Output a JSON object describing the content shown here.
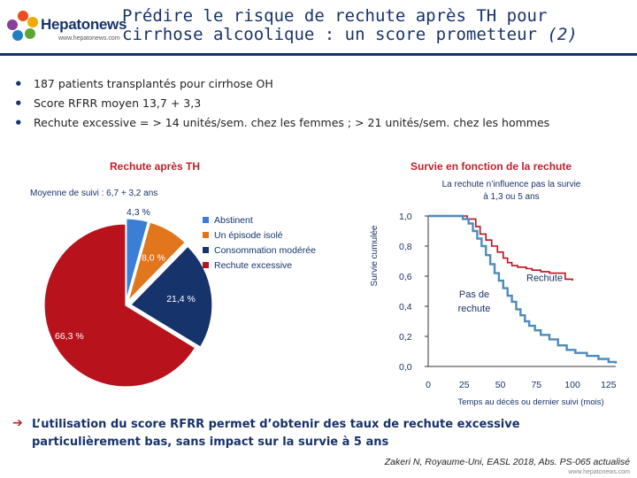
{
  "header": {
    "logo_text": "Hepatonews",
    "logo_url": "www.hepatonews.com",
    "title_line1": "Prédire le risque de rechute après TH pour",
    "title_line2": "cirrhose alcoolique : un score prometteur",
    "title_number": "(2)"
  },
  "bullets": [
    "187 patients transplantés pour cirrhose OH",
    "Score RFRR moyen 13,7 + 3,3",
    "Rechute excessive = > 14 unités/sem. chez les femmes ; > 21 unités/sem. chez les hommes"
  ],
  "left_panel": {
    "title": "Rechute après TH",
    "note": "Moyenne de suivi : 6,7 + 3,2 ans"
  },
  "right_panel": {
    "title": "Survie en fonction de la rechute",
    "note_line1": "La rechute n’influence pas la survie",
    "note_line2": "à 1,3 ou 5 ans"
  },
  "chart_data": [
    {
      "type": "pie",
      "title": "Rechute après TH",
      "legend_position": "right",
      "slices": [
        {
          "name": "Abstinent",
          "value": 4.3,
          "label": "4,3 %",
          "color": "#3a7fd5"
        },
        {
          "name": "Un épisode isolé",
          "value": 8.0,
          "label": "8,0 %",
          "color": "#e2761c"
        },
        {
          "name": "Consommation modérée",
          "value": 21.4,
          "label": "21,4 %",
          "color": "#17336b"
        },
        {
          "name": "Rechute excessive",
          "value": 66.3,
          "label": "66,3 %",
          "color": "#b8121d"
        }
      ]
    },
    {
      "type": "line",
      "title": "Survie en fonction de la rechute",
      "xlabel": "Temps au décès ou dernier suivi (mois)",
      "ylabel": "Survie cumulée",
      "xlim": [
        0,
        130
      ],
      "ylim": [
        0,
        1
      ],
      "x_ticks": [
        "0",
        "25",
        "50",
        "75",
        "100",
        "125"
      ],
      "y_ticks": [
        "0,0",
        "0,2",
        "0,4",
        "0,6",
        "0,8",
        "1,0"
      ],
      "series": [
        {
          "name": "Rechute",
          "color": "#b8121d",
          "points": [
            [
              0,
              1.0
            ],
            [
              20,
              1.0
            ],
            [
              27,
              0.98
            ],
            [
              33,
              0.93
            ],
            [
              36,
              0.88
            ],
            [
              40,
              0.84
            ],
            [
              44,
              0.8
            ],
            [
              48,
              0.76
            ],
            [
              52,
              0.72
            ],
            [
              55,
              0.69
            ],
            [
              58,
              0.67
            ],
            [
              62,
              0.66
            ],
            [
              68,
              0.65
            ],
            [
              72,
              0.64
            ],
            [
              78,
              0.63
            ],
            [
              84,
              0.62
            ],
            [
              90,
              0.62
            ],
            [
              95,
              0.58
            ],
            [
              100,
              0.57
            ]
          ]
        },
        {
          "name": "Pas de rechute",
          "color": "#4d8bbd",
          "points": [
            [
              0,
              1.0
            ],
            [
              20,
              1.0
            ],
            [
              24,
              0.98
            ],
            [
              28,
              0.95
            ],
            [
              31,
              0.9
            ],
            [
              34,
              0.85
            ],
            [
              37,
              0.8
            ],
            [
              40,
              0.74
            ],
            [
              43,
              0.68
            ],
            [
              46,
              0.62
            ],
            [
              49,
              0.57
            ],
            [
              52,
              0.52
            ],
            [
              55,
              0.47
            ],
            [
              58,
              0.43
            ],
            [
              61,
              0.38
            ],
            [
              64,
              0.34
            ],
            [
              67,
              0.3
            ],
            [
              70,
              0.27
            ],
            [
              74,
              0.24
            ],
            [
              78,
              0.21
            ],
            [
              84,
              0.18
            ],
            [
              90,
              0.14
            ],
            [
              96,
              0.11
            ],
            [
              102,
              0.09
            ],
            [
              110,
              0.07
            ],
            [
              118,
              0.05
            ],
            [
              125,
              0.03
            ],
            [
              130,
              0.02
            ]
          ]
        }
      ]
    }
  ],
  "conclusion": {
    "line1": "L’utilisation du score RFRR permet d’obtenir des taux de rechute excessive",
    "line2": "particulièrement bas, sans impact sur la survie à 5 ans"
  },
  "reference": "Zakeri N, Royaume-Uni, EASL 2018, Abs. PS-065 actualisé",
  "footer_url": "www.hepatonews.com"
}
